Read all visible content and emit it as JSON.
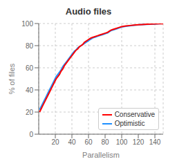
{
  "chart_data": {
    "type": "line",
    "title": "Audio files",
    "xlabel": "Parallelism",
    "ylabel": "% of files",
    "x": [
      1,
      3,
      5,
      7,
      9,
      11,
      13,
      15,
      17,
      19,
      21,
      23,
      25,
      27,
      29,
      31,
      33,
      35,
      37,
      39,
      41,
      43,
      45,
      47,
      49,
      51,
      53,
      55,
      57,
      59,
      61,
      63,
      65,
      67,
      69,
      71,
      73,
      75,
      77,
      79,
      81,
      83,
      85,
      87,
      89,
      91,
      93,
      95,
      97,
      100,
      105,
      110,
      115,
      120,
      125,
      130,
      135,
      140,
      145,
      150
    ],
    "series": [
      {
        "name": "Conservative",
        "color": "#ff0000",
        "values": [
          20,
          23,
          26,
          29,
          32,
          35,
          38,
          41,
          44,
          47,
          50,
          52,
          54,
          57,
          59,
          62,
          64,
          66,
          68,
          70,
          72,
          74,
          76,
          77,
          79,
          80,
          81,
          83,
          84,
          85,
          86,
          87,
          87.5,
          88,
          88.5,
          89,
          89.5,
          90,
          90.5,
          91,
          91.5,
          92,
          93,
          94,
          94.5,
          95,
          95.5,
          96,
          96.5,
          97.2,
          97.8,
          98.2,
          98.6,
          98.9,
          99.1,
          99.3,
          99.5,
          99.7,
          99.8,
          99.9
        ]
      },
      {
        "name": "Optimistic",
        "color": "#1e90ff",
        "values": [
          22,
          25,
          28,
          31,
          34,
          37,
          40,
          43,
          46,
          49,
          52,
          54,
          56,
          58,
          61,
          63,
          65,
          67,
          69,
          71,
          73,
          75,
          76,
          78,
          79,
          80,
          81,
          82,
          83,
          84,
          85,
          86,
          87,
          87.5,
          88,
          88.5,
          89,
          89.5,
          90,
          90.5,
          91,
          91.5,
          92.5,
          93.5,
          94,
          94.5,
          95,
          95.5,
          96,
          96.8,
          97.5,
          98,
          98.4,
          98.7,
          99,
          99.2,
          99.4,
          99.6,
          99.8,
          100
        ]
      }
    ],
    "xlim": [
      0,
      150
    ],
    "ylim": [
      0,
      100
    ],
    "xticks": [
      20,
      40,
      60,
      80,
      100,
      120,
      140
    ],
    "yticks": [
      0,
      20,
      40,
      60,
      80,
      100
    ],
    "grid": true,
    "legend": "lower right"
  }
}
